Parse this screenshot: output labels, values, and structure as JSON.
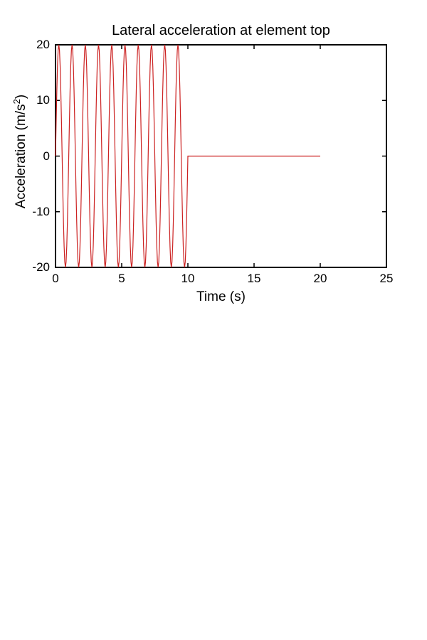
{
  "figure": {
    "title": "Lateral acceleration at element top",
    "xlabel": "Time (s)",
    "ylabel_pre": "Acceleration (m/s",
    "ylabel_sup": "2",
    "ylabel_post": ")"
  },
  "chart_data": {
    "type": "line",
    "title": "Lateral acceleration at element top",
    "xlabel": "Time (s)",
    "ylabel": "Acceleration (m/s^2)",
    "xlim": [
      0,
      25
    ],
    "ylim": [
      -20,
      20
    ],
    "xticks": [
      0,
      5,
      10,
      15,
      20,
      25
    ],
    "yticks": [
      -20,
      -10,
      0,
      10,
      20
    ],
    "grid": false,
    "legend": "none",
    "box": true,
    "tick_direction": "in",
    "line_color": "#cc2222",
    "axis_color": "#000000",
    "background": "#ffffff",
    "series": [
      {
        "name": "lateral-acceleration",
        "description": "a(t) = 20*sin(2*pi*1*t) m/s^2 for 0 <= t <= 10 s, then constant 0 for 10 < t <= 20 s; nothing plotted beyond t = 20 s.",
        "signal": {
          "shape": "sine_then_zero",
          "amplitude": 20,
          "frequency_hz": 1,
          "phase_rad": 0,
          "sine_end_s": 10,
          "signal_end_s": 20,
          "sample_dt_s": 0.05
        },
        "keypoints": [
          [
            0,
            0
          ],
          [
            0.25,
            20
          ],
          [
            0.75,
            -20
          ],
          [
            9.25,
            20
          ],
          [
            9.75,
            -20
          ],
          [
            10,
            0
          ],
          [
            20,
            0
          ]
        ]
      }
    ]
  }
}
